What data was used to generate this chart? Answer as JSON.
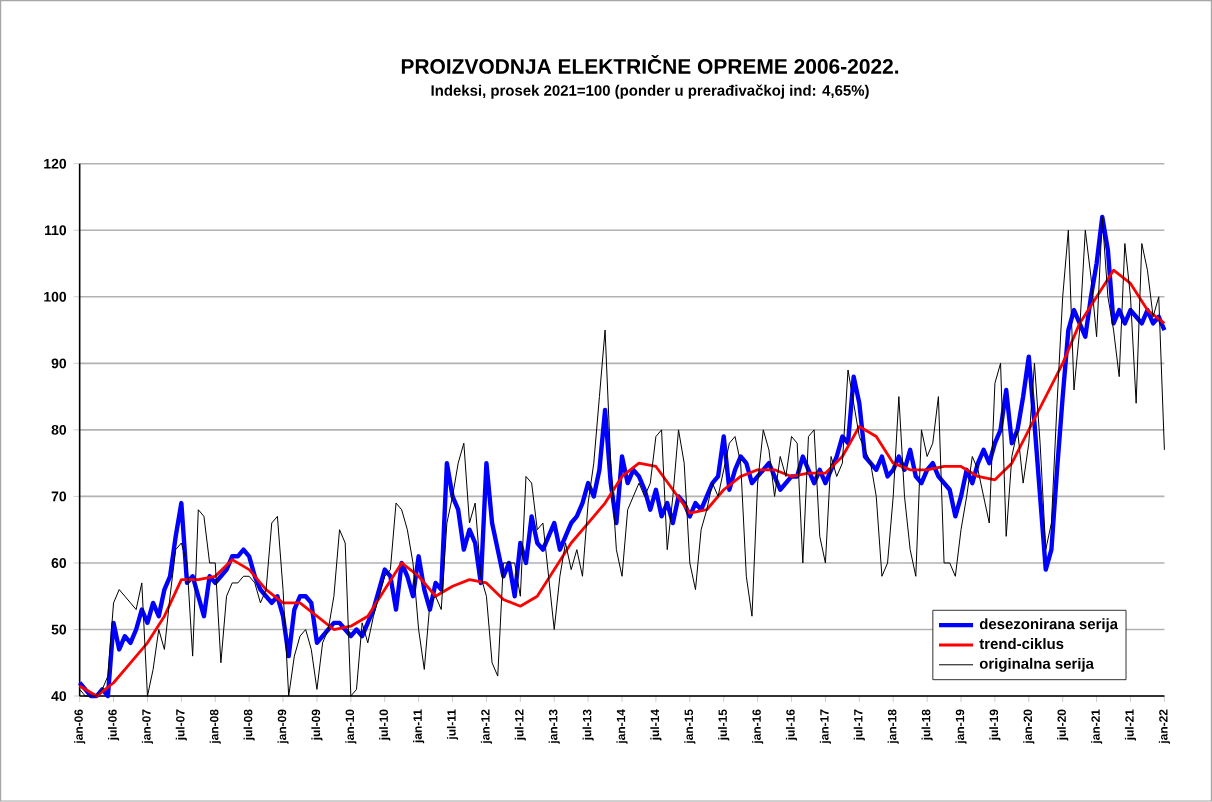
{
  "chart_data": {
    "type": "line",
    "title": "PROIZVODNJA ELEKTRIČNE OPREME 2006-2022.",
    "subtitle": "Indeksi, prosek 2021=100 (ponder u prerađivačkoj ind: 4,65%)",
    "x": [
      "2006-01",
      "2006-02",
      "2006-03",
      "2006-04",
      "2006-05",
      "2006-06",
      "2006-07",
      "2006-08",
      "2006-09",
      "2006-10",
      "2006-11",
      "2006-12",
      "2007-01",
      "2007-02",
      "2007-03",
      "2007-04",
      "2007-05",
      "2007-06",
      "2007-07",
      "2007-08",
      "2007-09",
      "2007-10",
      "2007-11",
      "2007-12",
      "2008-01",
      "2008-02",
      "2008-03",
      "2008-04",
      "2008-05",
      "2008-06",
      "2008-07",
      "2008-08",
      "2008-09",
      "2008-10",
      "2008-11",
      "2008-12",
      "2009-01",
      "2009-02",
      "2009-03",
      "2009-04",
      "2009-05",
      "2009-06",
      "2009-07",
      "2009-08",
      "2009-09",
      "2009-10",
      "2009-11",
      "2009-12",
      "2010-01",
      "2010-02",
      "2010-03",
      "2010-04",
      "2010-05",
      "2010-06",
      "2010-07",
      "2010-08",
      "2010-09",
      "2010-10",
      "2010-11",
      "2010-12",
      "2011-01",
      "2011-02",
      "2011-03",
      "2011-04",
      "2011-05",
      "2011-06",
      "2011-07",
      "2011-08",
      "2011-09",
      "2011-10",
      "2011-11",
      "2011-12",
      "2012-01",
      "2012-02",
      "2012-03",
      "2012-04",
      "2012-05",
      "2012-06",
      "2012-07",
      "2012-08",
      "2012-09",
      "2012-10",
      "2012-11",
      "2012-12",
      "2013-01",
      "2013-02",
      "2013-03",
      "2013-04",
      "2013-05",
      "2013-06",
      "2013-07",
      "2013-08",
      "2013-09",
      "2013-10",
      "2013-11",
      "2013-12",
      "2014-01",
      "2014-02",
      "2014-03",
      "2014-04",
      "2014-05",
      "2014-06",
      "2014-07",
      "2014-08",
      "2014-09",
      "2014-10",
      "2014-11",
      "2014-12",
      "2015-01",
      "2015-02",
      "2015-03",
      "2015-04",
      "2015-05",
      "2015-06",
      "2015-07",
      "2015-08",
      "2015-09",
      "2015-10",
      "2015-11",
      "2015-12",
      "2016-01",
      "2016-02",
      "2016-03",
      "2016-04",
      "2016-05",
      "2016-06",
      "2016-07",
      "2016-08",
      "2016-09",
      "2016-10",
      "2016-11",
      "2016-12",
      "2017-01",
      "2017-02",
      "2017-03",
      "2017-04",
      "2017-05",
      "2017-06",
      "2017-07",
      "2017-08",
      "2017-09",
      "2017-10",
      "2017-11",
      "2017-12",
      "2018-01",
      "2018-02",
      "2018-03",
      "2018-04",
      "2018-05",
      "2018-06",
      "2018-07",
      "2018-08",
      "2018-09",
      "2018-10",
      "2018-11",
      "2018-12",
      "2019-01",
      "2019-02",
      "2019-03",
      "2019-04",
      "2019-05",
      "2019-06",
      "2019-07",
      "2019-08",
      "2019-09",
      "2019-10",
      "2019-11",
      "2019-12",
      "2020-01",
      "2020-02",
      "2020-03",
      "2020-04",
      "2020-05",
      "2020-06",
      "2020-07",
      "2020-08",
      "2020-09",
      "2020-10",
      "2020-11",
      "2020-12",
      "2021-01",
      "2021-02",
      "2021-03",
      "2021-04",
      "2021-05",
      "2021-06",
      "2021-07",
      "2021-08",
      "2021-09",
      "2021-10",
      "2021-11",
      "2021-12",
      "2022-01"
    ],
    "series": [
      {
        "name": "desezonirana serija",
        "color": "#0000ff",
        "values": [
          42,
          41,
          40,
          40,
          41,
          40,
          51,
          47,
          49,
          48,
          50,
          53,
          51,
          54,
          52,
          56,
          58,
          64,
          69,
          57,
          58,
          55,
          52,
          58,
          57,
          58,
          59,
          61,
          61,
          62,
          61,
          58,
          56,
          55,
          54,
          55,
          52,
          46,
          53,
          55,
          55,
          54,
          48,
          49,
          50,
          51,
          51,
          50,
          49,
          50,
          49,
          51,
          53,
          56,
          59,
          58,
          53,
          60,
          58,
          55,
          61,
          56,
          53,
          57,
          56,
          75,
          70,
          68,
          62,
          65,
          63,
          57,
          75,
          66,
          62,
          58,
          60,
          55,
          63,
          60,
          67,
          63,
          62,
          64,
          66,
          62,
          64,
          66,
          67,
          69,
          72,
          70,
          74,
          83,
          72,
          66,
          76,
          72,
          74,
          73,
          71,
          68,
          71,
          67,
          69,
          66,
          70,
          69,
          67,
          69,
          68,
          70,
          72,
          73,
          79,
          71,
          74,
          76,
          75,
          72,
          73,
          74,
          75,
          73,
          71,
          72,
          73,
          73,
          76,
          74,
          72,
          74,
          72,
          74,
          76,
          79,
          78,
          88,
          84,
          76,
          75,
          74,
          76,
          73,
          74,
          76,
          74,
          77,
          73,
          72,
          74,
          75,
          73,
          72,
          71,
          67,
          70,
          74,
          72,
          75,
          77,
          75,
          78,
          80,
          86,
          78,
          80,
          85,
          91,
          81,
          70,
          59,
          62,
          74,
          85,
          95,
          98,
          96,
          94,
          100,
          105,
          112,
          107,
          96,
          98,
          96,
          98,
          97,
          96,
          98,
          96,
          97,
          95
        ]
      },
      {
        "name": "trend-ciklus",
        "color": "#ff0000",
        "x": [
          "2006-01",
          "2006-04",
          "2006-07",
          "2006-10",
          "2007-01",
          "2007-04",
          "2007-07",
          "2007-10",
          "2008-01",
          "2008-04",
          "2008-07",
          "2008-10",
          "2009-01",
          "2009-04",
          "2009-07",
          "2009-10",
          "2010-01",
          "2010-04",
          "2010-07",
          "2010-10",
          "2011-01",
          "2011-04",
          "2011-07",
          "2011-10",
          "2012-01",
          "2012-04",
          "2012-07",
          "2012-10",
          "2013-01",
          "2013-04",
          "2013-07",
          "2013-10",
          "2014-01",
          "2014-04",
          "2014-07",
          "2014-10",
          "2015-01",
          "2015-04",
          "2015-07",
          "2015-10",
          "2016-01",
          "2016-04",
          "2016-07",
          "2016-10",
          "2017-01",
          "2017-04",
          "2017-07",
          "2017-10",
          "2018-01",
          "2018-04",
          "2018-07",
          "2018-10",
          "2019-01",
          "2019-04",
          "2019-07",
          "2019-10",
          "2020-01",
          "2020-04",
          "2020-07",
          "2020-10",
          "2021-01",
          "2021-04",
          "2021-07",
          "2021-10",
          "2022-01"
        ],
        "values": [
          41.5,
          40,
          42,
          45,
          48,
          52,
          57.5,
          57.5,
          58,
          60.5,
          59,
          56,
          54,
          54,
          52,
          50,
          50.5,
          52,
          56,
          60,
          58,
          55,
          56.5,
          57.5,
          57,
          54.5,
          53.5,
          55,
          59,
          63,
          66,
          69,
          73,
          75,
          74.5,
          71,
          67.5,
          68,
          71,
          73,
          74,
          74,
          73,
          73.5,
          73.5,
          76,
          80.5,
          79,
          75,
          74,
          74,
          74.5,
          74.5,
          73,
          72.5,
          75,
          80,
          85,
          90,
          96,
          100,
          104,
          102,
          98,
          96
        ]
      },
      {
        "name": "originalna serija",
        "color": "#000000",
        "values": [
          41,
          40,
          40,
          40,
          41,
          43,
          54,
          56,
          55,
          54,
          53,
          57,
          40,
          44,
          50,
          47,
          55,
          62,
          63,
          60,
          46,
          68,
          67,
          60,
          60,
          45,
          55,
          57,
          57,
          58,
          58,
          57,
          54,
          56,
          66,
          67,
          56,
          40,
          46,
          49,
          50,
          47,
          41,
          48,
          50,
          55,
          65,
          63,
          40,
          41,
          51,
          48,
          52,
          55,
          58,
          59,
          69,
          68,
          65,
          60,
          50,
          44,
          54,
          55,
          53,
          66,
          70,
          75,
          78,
          66,
          69,
          58,
          55,
          45,
          43,
          60,
          60,
          60,
          55,
          73,
          72,
          65,
          66,
          58,
          50,
          58,
          63,
          59,
          62,
          58,
          69,
          75,
          85,
          95,
          75,
          62,
          58,
          68,
          70,
          72,
          70,
          72,
          79,
          80,
          62,
          70,
          80,
          75,
          60,
          56,
          65,
          68,
          72,
          70,
          74,
          78,
          79,
          75,
          58,
          52,
          72,
          80,
          77,
          70,
          76,
          73,
          79,
          78,
          60,
          79,
          80,
          64,
          60,
          76,
          73,
          75,
          89,
          84,
          79,
          77,
          75,
          70,
          58,
          60,
          70,
          85,
          70,
          62,
          58,
          80,
          76,
          78,
          85,
          60,
          60,
          58,
          65,
          70,
          76,
          74,
          70,
          66,
          87,
          90,
          64,
          76,
          80,
          72,
          78,
          90,
          78,
          62,
          66,
          84,
          100,
          110,
          86,
          95,
          110,
          103,
          94,
          112,
          100,
          95,
          88,
          108,
          100,
          84,
          108,
          104,
          97,
          100,
          77
        ]
      }
    ],
    "xlim": [
      "2006-01",
      "2022-01"
    ],
    "xticks": [
      {
        "value": "2006-01",
        "label": "jan-06"
      },
      {
        "value": "2006-07",
        "label": "jul-06"
      },
      {
        "value": "2007-01",
        "label": "jan-07"
      },
      {
        "value": "2007-07",
        "label": "jul-07"
      },
      {
        "value": "2008-01",
        "label": "jan-08"
      },
      {
        "value": "2008-07",
        "label": "jul-08"
      },
      {
        "value": "2009-01",
        "label": "jan-09"
      },
      {
        "value": "2009-07",
        "label": "jul-09"
      },
      {
        "value": "2010-01",
        "label": "jan-10"
      },
      {
        "value": "2010-07",
        "label": "jul-10"
      },
      {
        "value": "2011-01",
        "label": "jan-11"
      },
      {
        "value": "2011-07",
        "label": "jul-11"
      },
      {
        "value": "2012-01",
        "label": "jan-12"
      },
      {
        "value": "2012-07",
        "label": "jul-12"
      },
      {
        "value": "2013-01",
        "label": "jan-13"
      },
      {
        "value": "2013-07",
        "label": "jul-13"
      },
      {
        "value": "2014-01",
        "label": "jan-14"
      },
      {
        "value": "2014-07",
        "label": "jul-14"
      },
      {
        "value": "2015-01",
        "label": "jan-15"
      },
      {
        "value": "2015-07",
        "label": "jul-15"
      },
      {
        "value": "2016-01",
        "label": "jan-16"
      },
      {
        "value": "2016-07",
        "label": "jul-16"
      },
      {
        "value": "2017-01",
        "label": "jan-17"
      },
      {
        "value": "2017-07",
        "label": "jul-17"
      },
      {
        "value": "2018-01",
        "label": "jan-18"
      },
      {
        "value": "2018-07",
        "label": "jul-18"
      },
      {
        "value": "2019-01",
        "label": "jan-19"
      },
      {
        "value": "2019-07",
        "label": "jul-19"
      },
      {
        "value": "2020-01",
        "label": "jan-20"
      },
      {
        "value": "2020-07",
        "label": "jul-20"
      },
      {
        "value": "2021-01",
        "label": "jan-21"
      },
      {
        "value": "2021-07",
        "label": "jul-21"
      },
      {
        "value": "2022-01",
        "label": "jan-22"
      }
    ],
    "ylim": [
      40,
      120
    ],
    "yticks": [
      40,
      50,
      60,
      70,
      80,
      90,
      100,
      110,
      120
    ],
    "grid": "y",
    "legend": "bottom right",
    "marker": "none",
    "line_style": "solid"
  }
}
